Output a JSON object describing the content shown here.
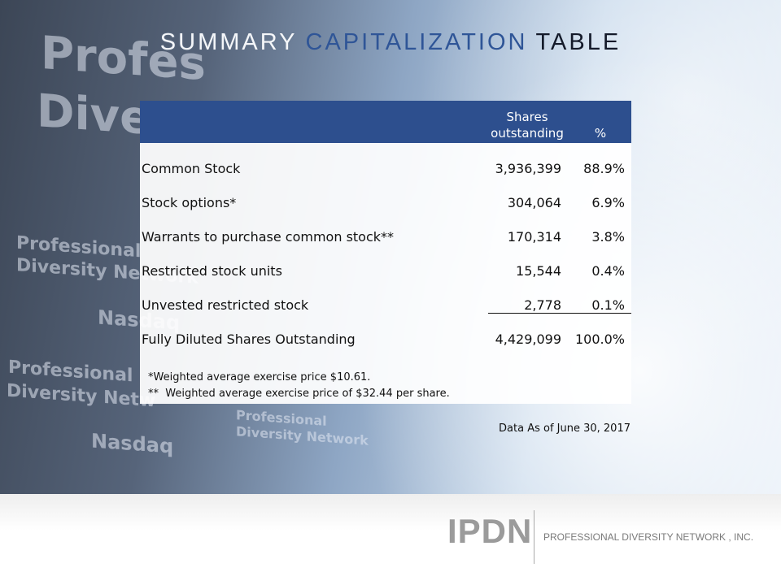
{
  "title": {
    "parts": [
      "SUMMARY",
      "CAPITALIZATION",
      "TABLE"
    ]
  },
  "table": {
    "header": [
      "Shares outstanding",
      "%"
    ],
    "rows": [
      [
        "Common Stock",
        "3,936,399",
        "88.9%"
      ],
      [
        "Stock options*",
        "304,064",
        "6.9%"
      ],
      [
        "Warrants to purchase common stock**",
        "170,314",
        "3.8%"
      ],
      [
        "Restricted stock units",
        "15,544",
        "0.4%"
      ],
      [
        "Unvested restricted stock",
        "2,778",
        "0.1%"
      ],
      [
        "Fully Diluted Shares Outstanding",
        "4,429,099",
        "100.0%"
      ]
    ],
    "footnotes": [
      "*Weighted average exercise price $10.61.",
      "**  Weighted average exercise price of $32.44 per share."
    ]
  },
  "note": "Data As of June 30, 2017",
  "footer": {
    "logo": "IPDN",
    "company": "PROFESSIONAL DIVERSITY NETWORK , INC."
  },
  "background_signage": [
    "Profes",
    "Diver",
    "Professional",
    "Diversity Network",
    "Nasdaq",
    "Professional",
    "Diversity Netw",
    "Nasdaq",
    "Professional",
    "Diversity Network"
  ]
}
